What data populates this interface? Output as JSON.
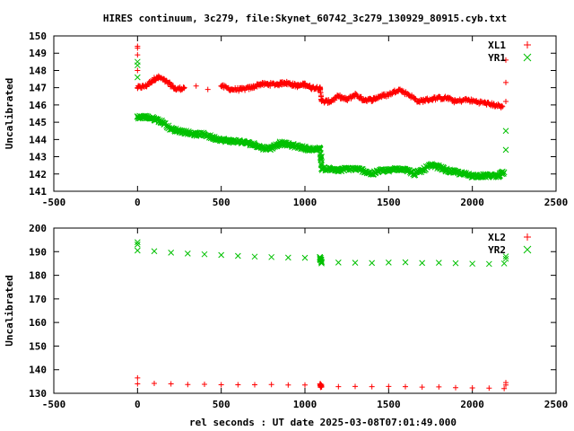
{
  "title": "HIRES continuum, 3c279, file:Skynet_60742_3c279_130929_80915.cyb.txt",
  "chart_data": [
    {
      "type": "scatter",
      "ylabel": "Uncalibrated",
      "xlim": [
        -500,
        2500
      ],
      "ylim": [
        141,
        150
      ],
      "xticks": [
        -500,
        0,
        500,
        1000,
        1500,
        2000,
        2500
      ],
      "yticks": [
        141,
        142,
        143,
        144,
        145,
        146,
        147,
        148,
        149,
        150
      ],
      "legend_position": "top-right",
      "series": [
        {
          "name": "XL1",
          "color": "#ff0000",
          "marker": "plus",
          "outliers": [
            [
              0,
              149.4
            ],
            [
              0,
              149.3
            ],
            [
              0,
              148.9
            ],
            [
              0,
              148.0
            ],
            [
              2200,
              148.6
            ],
            [
              2200,
              147.3
            ],
            [
              2200,
              146.2
            ]
          ],
          "points": [
            [
              0,
              147.0
            ],
            [
              50,
              147.1
            ],
            [
              100,
              147.5
            ],
            [
              130,
              147.6
            ],
            [
              180,
              147.3
            ],
            [
              230,
              146.9
            ],
            [
              280,
              147.0
            ],
            [
              350,
              147.1
            ],
            [
              420,
              146.9
            ],
            [
              500,
              147.1
            ],
            [
              560,
              146.9
            ],
            [
              620,
              146.9
            ],
            [
              680,
              147.0
            ],
            [
              730,
              147.2
            ],
            [
              780,
              147.2
            ],
            [
              840,
              147.2
            ],
            [
              880,
              147.3
            ],
            [
              920,
              147.2
            ],
            [
              960,
              147.1
            ],
            [
              1000,
              147.2
            ],
            [
              1040,
              147.0
            ],
            [
              1090,
              147.0
            ],
            [
              1100,
              146.2
            ],
            [
              1150,
              146.2
            ],
            [
              1200,
              146.5
            ],
            [
              1250,
              146.3
            ],
            [
              1300,
              146.6
            ],
            [
              1350,
              146.3
            ],
            [
              1400,
              146.3
            ],
            [
              1450,
              146.5
            ],
            [
              1500,
              146.6
            ],
            [
              1560,
              146.9
            ],
            [
              1620,
              146.6
            ],
            [
              1680,
              146.2
            ],
            [
              1730,
              146.3
            ],
            [
              1790,
              146.4
            ],
            [
              1850,
              146.4
            ],
            [
              1900,
              146.2
            ],
            [
              1960,
              146.3
            ],
            [
              2020,
              146.2
            ],
            [
              2080,
              146.1
            ],
            [
              2130,
              146.0
            ],
            [
              2180,
              145.9
            ]
          ]
        },
        {
          "name": "YR1",
          "color": "#00c000",
          "marker": "cross",
          "outliers": [
            [
              0,
              148.5
            ],
            [
              0,
              148.3
            ],
            [
              0,
              147.6
            ],
            [
              2200,
              144.5
            ],
            [
              2200,
              143.4
            ],
            [
              1100,
              143.0
            ]
          ],
          "points": [
            [
              0,
              145.3
            ],
            [
              50,
              145.3
            ],
            [
              100,
              145.2
            ],
            [
              150,
              145.0
            ],
            [
              200,
              144.6
            ],
            [
              250,
              144.5
            ],
            [
              300,
              144.4
            ],
            [
              350,
              144.3
            ],
            [
              400,
              144.3
            ],
            [
              450,
              144.1
            ],
            [
              500,
              144.0
            ],
            [
              550,
              143.9
            ],
            [
              600,
              143.9
            ],
            [
              650,
              143.8
            ],
            [
              700,
              143.7
            ],
            [
              750,
              143.5
            ],
            [
              800,
              143.5
            ],
            [
              850,
              143.8
            ],
            [
              900,
              143.7
            ],
            [
              950,
              143.6
            ],
            [
              1000,
              143.5
            ],
            [
              1050,
              143.4
            ],
            [
              1090,
              143.5
            ],
            [
              1100,
              142.3
            ],
            [
              1150,
              142.3
            ],
            [
              1200,
              142.2
            ],
            [
              1250,
              142.3
            ],
            [
              1300,
              142.3
            ],
            [
              1350,
              142.2
            ],
            [
              1400,
              142.0
            ],
            [
              1450,
              142.2
            ],
            [
              1500,
              142.2
            ],
            [
              1550,
              142.3
            ],
            [
              1600,
              142.3
            ],
            [
              1650,
              142.0
            ],
            [
              1700,
              142.2
            ],
            [
              1750,
              142.5
            ],
            [
              1800,
              142.4
            ],
            [
              1850,
              142.2
            ],
            [
              1900,
              142.1
            ],
            [
              1950,
              142.0
            ],
            [
              2000,
              141.9
            ],
            [
              2050,
              141.9
            ],
            [
              2100,
              141.9
            ],
            [
              2150,
              141.9
            ],
            [
              2190,
              142.1
            ]
          ]
        }
      ]
    },
    {
      "type": "scatter",
      "xlabel": "rel seconds : UT date 2025-03-08T07:01:49.000",
      "ylabel": "Uncalibrated",
      "xlim": [
        -500,
        2500
      ],
      "ylim": [
        130,
        200
      ],
      "xticks": [
        -500,
        0,
        500,
        1000,
        1500,
        2000,
        2500
      ],
      "yticks": [
        130,
        140,
        150,
        160,
        170,
        180,
        190,
        200
      ],
      "legend_position": "top-right",
      "series": [
        {
          "name": "XL2",
          "color": "#ff0000",
          "marker": "plus",
          "outliers": [
            [
              0,
              136.5
            ],
            [
              2200,
              134.5
            ],
            [
              2200,
              133.5
            ]
          ],
          "points": [
            [
              0,
              134.0
            ],
            [
              100,
              134.2
            ],
            [
              200,
              134.0
            ],
            [
              300,
              133.7
            ],
            [
              400,
              133.8
            ],
            [
              500,
              133.6
            ],
            [
              600,
              133.6
            ],
            [
              700,
              133.6
            ],
            [
              800,
              133.7
            ],
            [
              900,
              133.5
            ],
            [
              1000,
              133.5
            ],
            [
              1090,
              133.4
            ],
            [
              1100,
              132.7
            ],
            [
              1200,
              132.8
            ],
            [
              1300,
              132.9
            ],
            [
              1400,
              132.8
            ],
            [
              1500,
              132.9
            ],
            [
              1600,
              132.8
            ],
            [
              1700,
              132.6
            ],
            [
              1800,
              132.7
            ],
            [
              1900,
              132.4
            ],
            [
              2000,
              132.3
            ],
            [
              2100,
              132.2
            ],
            [
              2190,
              132.0
            ]
          ]
        },
        {
          "name": "YR2",
          "color": "#00c000",
          "marker": "cross",
          "outliers": [
            [
              0,
              194.0
            ],
            [
              0,
              193.0
            ],
            [
              2200,
              188.0
            ],
            [
              2200,
              187.0
            ]
          ],
          "points": [
            [
              0,
              190.5
            ],
            [
              100,
              190.2
            ],
            [
              200,
              189.6
            ],
            [
              300,
              189.2
            ],
            [
              400,
              188.9
            ],
            [
              500,
              188.6
            ],
            [
              600,
              188.2
            ],
            [
              700,
              187.9
            ],
            [
              800,
              187.7
            ],
            [
              900,
              187.5
            ],
            [
              1000,
              187.4
            ],
            [
              1090,
              187.2
            ],
            [
              1100,
              185.5
            ],
            [
              1200,
              185.4
            ],
            [
              1300,
              185.3
            ],
            [
              1400,
              185.2
            ],
            [
              1500,
              185.4
            ],
            [
              1600,
              185.5
            ],
            [
              1700,
              185.2
            ],
            [
              1800,
              185.3
            ],
            [
              1900,
              185.1
            ],
            [
              2000,
              184.9
            ],
            [
              2100,
              184.8
            ],
            [
              2190,
              185.0
            ]
          ]
        }
      ]
    }
  ]
}
